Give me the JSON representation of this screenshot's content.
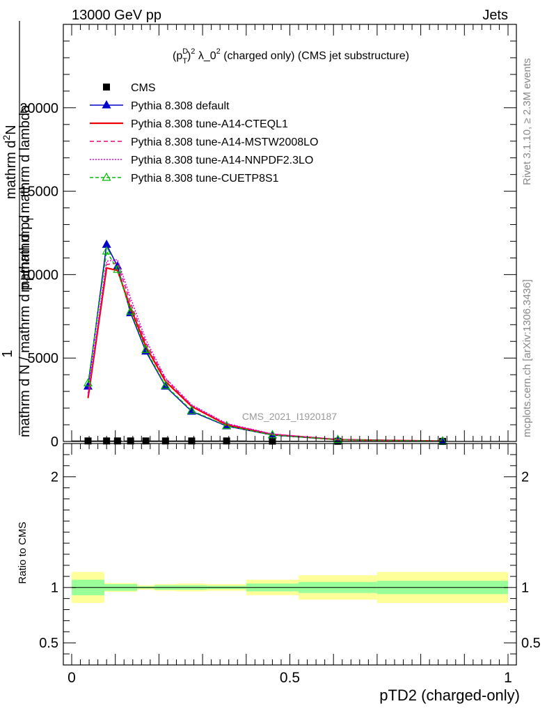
{
  "header": {
    "left": "13000 GeV pp",
    "right": "Jets"
  },
  "side_labels": {
    "rivet": "Rivet 3.1.10, ≥ 2.3M events",
    "mcplots": "mcplots.cern.ch [arXiv:1306.3436]"
  },
  "watermark": "CMS_2021_I1920187",
  "chart_data": [
    {
      "type": "line",
      "title": "(p_T^D)^2 λ_0^2 (charged only) (CMS jet substructure)",
      "title_parts": {
        "open": "(p",
        "sup1": "D",
        "sub1": "T",
        "close": ")",
        "sup2": "2",
        "mid": " λ_0",
        "sup3": "2",
        "tail": " (charged only) (CMS jet substructure)"
      },
      "ylabel_lines": [
        "1",
        "mathrm dN / mathrm d p_T mathrm d p_T mathrm d lambda",
        "mathrm d^2N"
      ],
      "ylabel_parts": {
        "line1": "1",
        "line2a": "mathrm d N / mathrm d p",
        "line2b": "mathrm d",
        "line3a": "mathrm d",
        "line3b": "N",
        "line3c": "mathrm d p",
        "line3d": "mathrm d lambda",
        "sub_T": "T",
        "sup_2": "2"
      },
      "ylim": [
        0,
        25000
      ],
      "xlim": [
        0,
        1
      ],
      "yticks": [
        0,
        5000,
        10000,
        15000,
        20000
      ],
      "ytick_labels": [
        "0",
        "5000",
        "10000",
        "15000",
        "20000"
      ],
      "x": [
        0.0375,
        0.08,
        0.105,
        0.135,
        0.17,
        0.215,
        0.275,
        0.355,
        0.46,
        0.61,
        0.85
      ],
      "xerr": [
        0.0375,
        0.02,
        0.01,
        0.015,
        0.02,
        0.025,
        0.035,
        0.045,
        0.06,
        0.09,
        0.15
      ],
      "series": [
        {
          "name": "CMS",
          "marker": "square",
          "color": "#000000",
          "dash": "",
          "values": [
            30,
            30,
            30,
            30,
            30,
            30,
            30,
            30,
            20,
            10,
            5
          ]
        },
        {
          "name": "Pythia 8.308 default",
          "marker": "triangle",
          "color": "#0000cc",
          "dash": "",
          "values": [
            3300,
            11800,
            10500,
            7700,
            5400,
            3300,
            1800,
            920,
            380,
            100,
            20
          ]
        },
        {
          "name": "Pythia 8.308 tune-A14-CTEQL1",
          "marker": "none",
          "color": "#ee0000",
          "dash": "",
          "values": [
            2600,
            10400,
            10250,
            8000,
            5700,
            3600,
            2100,
            1000,
            420,
            110,
            20
          ]
        },
        {
          "name": "Pythia 8.308 tune-A14-MSTW2008LO",
          "marker": "none",
          "color": "#ee0077",
          "dash": "6,4",
          "values": [
            2700,
            10600,
            10700,
            8300,
            5900,
            3750,
            2150,
            1050,
            440,
            115,
            20
          ]
        },
        {
          "name": "Pythia 8.308 tune-A14-NNPDF2.3LO",
          "marker": "none",
          "color": "#dd00dd",
          "dash": "2,2",
          "values": [
            2900,
            10800,
            10900,
            8600,
            6100,
            3800,
            2200,
            1080,
            450,
            118,
            20
          ]
        },
        {
          "name": "Pythia 8.308 tune-CUETP8S1",
          "marker": "triangle-open",
          "color": "#00bb00",
          "dash": "5,3",
          "values": [
            3500,
            11400,
            10300,
            7800,
            5500,
            3350,
            1850,
            940,
            390,
            105,
            20
          ]
        }
      ],
      "legend_position": "top-left"
    },
    {
      "type": "area",
      "ylabel": "Ratio to CMS",
      "xlabel": "pTD2 (charged-only)",
      "xlim": [
        0,
        1
      ],
      "ylim": [
        0.3,
        2.3
      ],
      "yticks": [
        0.5,
        1,
        2
      ],
      "ytick_labels": [
        "0.5",
        "1",
        "2"
      ],
      "xticks": [
        0,
        0.5,
        1
      ],
      "xtick_labels": [
        "0",
        "0.5",
        "1"
      ],
      "bands": {
        "edges": [
          0,
          0.075,
          0.15,
          0.19,
          0.24,
          0.31,
          0.4,
          0.52,
          0.7,
          1.0
        ],
        "inner": [
          [
            0.93,
            1.07
          ],
          [
            0.97,
            1.03
          ],
          [
            0.99,
            1.01
          ],
          [
            0.98,
            1.02
          ],
          [
            0.98,
            1.02
          ],
          [
            0.985,
            1.015
          ],
          [
            0.965,
            1.035
          ],
          [
            0.95,
            1.05
          ],
          [
            0.94,
            1.06
          ]
        ],
        "outer": [
          [
            0.86,
            1.14
          ],
          [
            0.96,
            1.04
          ],
          [
            0.98,
            1.02
          ],
          [
            0.97,
            1.03
          ],
          [
            0.965,
            1.035
          ],
          [
            0.97,
            1.03
          ],
          [
            0.93,
            1.07
          ],
          [
            0.89,
            1.11
          ],
          [
            0.86,
            1.14
          ]
        ],
        "inner_color": "#99ff99",
        "outer_color": "#ffff99"
      }
    }
  ]
}
